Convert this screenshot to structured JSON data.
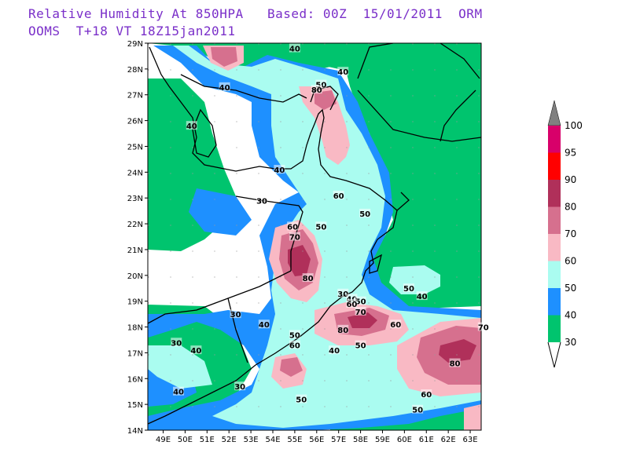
{
  "header": {
    "line1": "Relative Humidity At 850HPA   Based: 00Z  15/01/2011  ORM",
    "line2": "OOMS  T+18 VT 18Z15jan2011"
  },
  "axes": {
    "lat_labels": [
      "14N",
      "15N",
      "16N",
      "17N",
      "18N",
      "19N",
      "20N",
      "21N",
      "22N",
      "23N",
      "24N",
      "25N",
      "26N",
      "27N",
      "28N",
      "29N"
    ],
    "lon_labels": [
      "49E",
      "50E",
      "51E",
      "52E",
      "53E",
      "54E",
      "55E",
      "56E",
      "57E",
      "58E",
      "59E",
      "60E",
      "61E",
      "62E",
      "63E"
    ]
  },
  "colorbar": {
    "labels": [
      "100",
      "95",
      "90",
      "80",
      "70",
      "60",
      "50",
      "40",
      "30"
    ],
    "colors": {
      "c95": "#d8006a",
      "c90": "#ff0000",
      "c80": "#b0305a",
      "c70": "#d6708e",
      "c60": "#f9b9c4",
      "c50": "#aafcf0",
      "c40": "#1e90ff",
      "c30": "#00c46e",
      "top": "#808080"
    }
  },
  "contour_labels": [
    {
      "text": "40",
      "lon": 55.0,
      "lat": 28.8
    },
    {
      "text": "50",
      "lon": 56.2,
      "lat": 27.4
    },
    {
      "text": "40",
      "lon": 57.2,
      "lat": 27.9
    },
    {
      "text": "80",
      "lon": 56.0,
      "lat": 27.2
    },
    {
      "text": "40",
      "lon": 51.8,
      "lat": 27.3
    },
    {
      "text": "40",
      "lon": 50.3,
      "lat": 25.8
    },
    {
      "text": "40",
      "lon": 54.3,
      "lat": 24.1
    },
    {
      "text": "30",
      "lon": 53.5,
      "lat": 22.9
    },
    {
      "text": "60",
      "lon": 57.0,
      "lat": 23.1
    },
    {
      "text": "50",
      "lon": 58.2,
      "lat": 22.4
    },
    {
      "text": "50",
      "lon": 56.2,
      "lat": 21.9
    },
    {
      "text": "60",
      "lon": 54.9,
      "lat": 21.9
    },
    {
      "text": "70",
      "lon": 55.0,
      "lat": 21.5
    },
    {
      "text": "80",
      "lon": 55.6,
      "lat": 19.9
    },
    {
      "text": "50",
      "lon": 60.2,
      "lat": 19.5
    },
    {
      "text": "40",
      "lon": 60.8,
      "lat": 19.2
    },
    {
      "text": "30",
      "lon": 57.2,
      "lat": 19.3
    },
    {
      "text": "40",
      "lon": 57.6,
      "lat": 19.1
    },
    {
      "text": "50",
      "lon": 58.0,
      "lat": 19.0
    },
    {
      "text": "60",
      "lon": 57.6,
      "lat": 18.9
    },
    {
      "text": "70",
      "lon": 58.0,
      "lat": 18.6
    },
    {
      "text": "80",
      "lon": 57.2,
      "lat": 17.9
    },
    {
      "text": "60",
      "lon": 59.6,
      "lat": 18.1
    },
    {
      "text": "50",
      "lon": 58.0,
      "lat": 17.3
    },
    {
      "text": "40",
      "lon": 56.8,
      "lat": 17.1
    },
    {
      "text": "50",
      "lon": 55.0,
      "lat": 17.7
    },
    {
      "text": "60",
      "lon": 55.0,
      "lat": 17.3
    },
    {
      "text": "30",
      "lon": 52.3,
      "lat": 18.5
    },
    {
      "text": "40",
      "lon": 53.6,
      "lat": 18.1
    },
    {
      "text": "30",
      "lon": 49.6,
      "lat": 17.4
    },
    {
      "text": "40",
      "lon": 50.5,
      "lat": 17.1
    },
    {
      "text": "70",
      "lon": 63.6,
      "lat": 18.0
    },
    {
      "text": "80",
      "lon": 62.3,
      "lat": 16.6
    },
    {
      "text": "30",
      "lon": 52.5,
      "lat": 15.7
    },
    {
      "text": "40",
      "lon": 49.7,
      "lat": 15.5
    },
    {
      "text": "50",
      "lon": 55.3,
      "lat": 15.2
    },
    {
      "text": "60",
      "lon": 61.0,
      "lat": 15.4
    },
    {
      "text": "50",
      "lon": 60.6,
      "lat": 14.8
    }
  ]
}
